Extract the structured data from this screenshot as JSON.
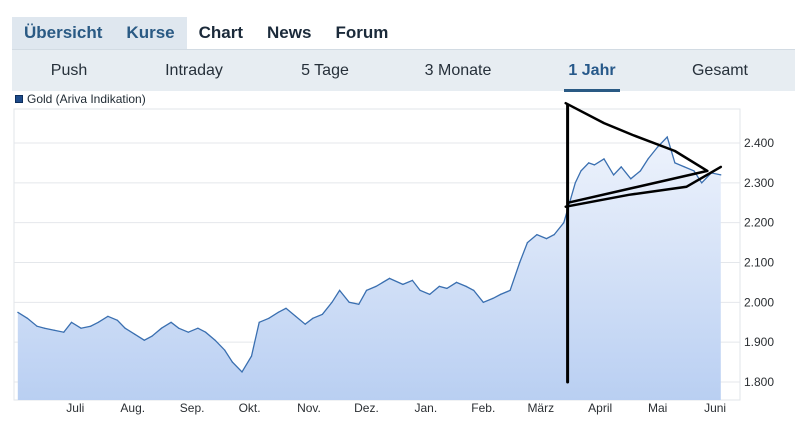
{
  "top_tabs": [
    {
      "label": "Übersicht",
      "group": true
    },
    {
      "label": "Kurse",
      "group": true
    },
    {
      "label": "Chart",
      "group": false
    },
    {
      "label": "News",
      "group": false
    },
    {
      "label": "Forum",
      "group": false
    }
  ],
  "range_tabs": [
    {
      "label": "Push",
      "active": false
    },
    {
      "label": "Intraday",
      "active": false
    },
    {
      "label": "5 Tage",
      "active": false
    },
    {
      "label": "3 Monate",
      "active": false
    },
    {
      "label": "1 Jahr",
      "active": true
    },
    {
      "label": "Gesamt",
      "active": false
    }
  ],
  "legend": {
    "label": "Gold (Ariva Indikation)",
    "color": "#1e4b8a"
  },
  "chart_data": {
    "type": "area",
    "series": [
      {
        "name": "Gold (Ariva Indikation)",
        "color": "#3a6fb0"
      }
    ],
    "x_tick_labels": [
      "Juli",
      "Aug.",
      "Sep.",
      "Okt.",
      "Nov.",
      "Dez.",
      "Jan.",
      "Feb.",
      "März",
      "April",
      "Mai",
      "Juni"
    ],
    "y_tick_labels": [
      "1.800",
      "1.900",
      "2.000",
      "2.100",
      "2.200",
      "2.300",
      "2.400"
    ],
    "y_ticks": [
      1800,
      1900,
      2000,
      2100,
      2200,
      2300,
      2400
    ],
    "ylim": [
      1760,
      2500
    ],
    "x": [
      "2023-06-16",
      "2023-06-21",
      "2023-06-26",
      "2023-06-30",
      "2023-07-05",
      "2023-07-10",
      "2023-07-14",
      "2023-07-19",
      "2023-07-24",
      "2023-07-28",
      "2023-08-02",
      "2023-08-07",
      "2023-08-11",
      "2023-08-16",
      "2023-08-21",
      "2023-08-25",
      "2023-08-30",
      "2023-09-04",
      "2023-09-08",
      "2023-09-13",
      "2023-09-18",
      "2023-09-22",
      "2023-09-27",
      "2023-10-02",
      "2023-10-06",
      "2023-10-11",
      "2023-10-16",
      "2023-10-20",
      "2023-10-25",
      "2023-10-30",
      "2023-11-03",
      "2023-11-08",
      "2023-11-13",
      "2023-11-17",
      "2023-11-22",
      "2023-11-27",
      "2023-12-01",
      "2023-12-06",
      "2023-12-11",
      "2023-12-15",
      "2023-12-20",
      "2023-12-27",
      "2024-01-03",
      "2024-01-08",
      "2024-01-12",
      "2024-01-17",
      "2024-01-22",
      "2024-01-26",
      "2024-01-31",
      "2024-02-05",
      "2024-02-09",
      "2024-02-14",
      "2024-02-19",
      "2024-02-23",
      "2024-02-28",
      "2024-03-04",
      "2024-03-08",
      "2024-03-13",
      "2024-03-18",
      "2024-03-22",
      "2024-03-27",
      "2024-04-02",
      "2024-04-05",
      "2024-04-09",
      "2024-04-12",
      "2024-04-17",
      "2024-04-22",
      "2024-04-26",
      "2024-05-01",
      "2024-05-06",
      "2024-05-10",
      "2024-05-15",
      "2024-05-20",
      "2024-05-24",
      "2024-05-29",
      "2024-06-03",
      "2024-06-07",
      "2024-06-12",
      "2024-06-17"
    ],
    "y": [
      1975,
      1960,
      1940,
      1935,
      1930,
      1925,
      1950,
      1935,
      1940,
      1950,
      1965,
      1955,
      1935,
      1920,
      1905,
      1915,
      1935,
      1950,
      1935,
      1925,
      1935,
      1925,
      1905,
      1880,
      1850,
      1825,
      1865,
      1950,
      1960,
      1975,
      1985,
      1965,
      1945,
      1960,
      1970,
      2000,
      2030,
      2000,
      1995,
      2030,
      2040,
      2060,
      2045,
      2055,
      2030,
      2020,
      2040,
      2035,
      2050,
      2040,
      2030,
      2000,
      2010,
      2020,
      2030,
      2100,
      2150,
      2170,
      2160,
      2170,
      2200,
      2300,
      2330,
      2350,
      2345,
      2360,
      2320,
      2340,
      2310,
      2330,
      2360,
      2390,
      2415,
      2350,
      2340,
      2330,
      2300,
      2325,
      2320
    ],
    "annotation": {
      "type": "hand-drawn-triangle-pattern",
      "start_date": "2024-03-29",
      "vertical_from": 2495,
      "vertical_to": 1800,
      "upper_line": [
        [
          "2024-03-28",
          2500
        ],
        [
          "2024-04-17",
          2450
        ],
        [
          "2024-05-02",
          2420
        ],
        [
          "2024-05-24",
          2380
        ],
        [
          "2024-06-10",
          2330
        ]
      ],
      "lower_line": [
        [
          "2024-03-28",
          2240
        ],
        [
          "2024-04-30",
          2270
        ],
        [
          "2024-05-30",
          2290
        ],
        [
          "2024-06-17",
          2340
        ]
      ]
    }
  }
}
